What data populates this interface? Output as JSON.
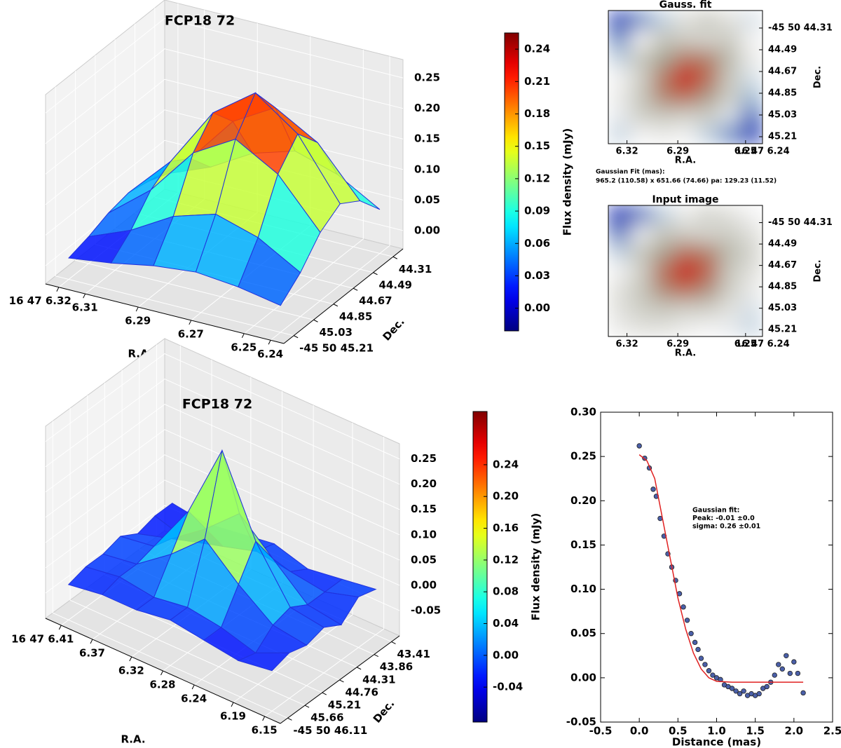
{
  "chart_data": [
    {
      "type": "surface3d",
      "title": "FCP18 72",
      "xlabel": "R.A.",
      "ylabel": "Dec.",
      "x": [
        6.32,
        6.304,
        6.288,
        6.272,
        6.256,
        6.24
      ],
      "y": [
        45.21,
        45.03,
        44.85,
        44.67,
        44.49,
        44.31
      ],
      "z": [
        [
          0.005,
          0.014,
          0.027,
          0.034,
          0.027,
          0.014
        ],
        [
          0.014,
          0.042,
          0.082,
          0.103,
          0.082,
          0.042
        ],
        [
          0.027,
          0.082,
          0.16,
          0.2,
          0.16,
          0.082
        ],
        [
          0.034,
          0.103,
          0.2,
          0.25,
          0.2,
          0.103
        ],
        [
          0.027,
          0.082,
          0.16,
          0.2,
          0.16,
          0.082
        ],
        [
          0.014,
          0.042,
          0.082,
          0.103,
          0.082,
          0.042
        ]
      ],
      "xlim": [
        6.325,
        6.235
      ],
      "xticks": [
        {
          "value": 6.32,
          "label": "16 47 6.32"
        },
        6.31,
        6.29,
        6.27,
        6.25,
        6.24
      ],
      "ylim": [
        45.3,
        44.22
      ],
      "yticks": [
        44.31,
        44.49,
        44.67,
        44.85,
        45.03,
        {
          "value": 45.21,
          "label": "-45 50 45.21"
        }
      ],
      "zlim": [
        -0.03,
        0.28
      ],
      "zticks": [
        0.25,
        {
          "value": 0.2,
          "label": "0.20"
        },
        0.15,
        {
          "value": 0.1,
          "label": "0.10"
        },
        0.05,
        {
          "value": 0,
          "label": "0.00"
        }
      ],
      "clim": [
        -0.021,
        0.255
      ],
      "colormap": "jet",
      "wire_color": "#2233dd"
    },
    {
      "type": "colorbar",
      "label": "Flux density (mJy)",
      "clim": [
        -0.021,
        0.255
      ],
      "colormap": "jet",
      "cticks": [
        0.24,
        0.21,
        0.18,
        0.15,
        0.12,
        0.09,
        0.06,
        0.03,
        {
          "value": 0,
          "label": "0.00"
        }
      ]
    },
    {
      "type": "heatmap",
      "title": "Gauss. fit",
      "xlabel": "R.A.",
      "ylabel": "Dec.",
      "values": [
        [
          0.05,
          0.15,
          0.3,
          0.45,
          0.5,
          0.45,
          0.35
        ],
        [
          0.15,
          0.4,
          0.52,
          0.5,
          0.48,
          0.5,
          0.4
        ],
        [
          0.3,
          0.52,
          0.6,
          0.75,
          0.72,
          0.55,
          0.42
        ],
        [
          0.4,
          0.5,
          0.75,
          1.0,
          0.8,
          0.52,
          0.35
        ],
        [
          0.42,
          0.52,
          0.72,
          0.8,
          0.65,
          0.5,
          0.25
        ],
        [
          0.38,
          0.5,
          0.52,
          0.5,
          0.5,
          0.35,
          0.12
        ],
        [
          0.32,
          0.4,
          0.42,
          0.4,
          0.3,
          0.15,
          0.05
        ]
      ],
      "clim": [
        0,
        1
      ],
      "colors": [
        "#1428b4",
        "#8fb0cc",
        "#f2f2f2",
        "#a8a898",
        "#b86a50",
        "#cc1010"
      ],
      "xlim": [
        6.331,
        6.24
      ],
      "xticks": [
        6.32,
        6.29,
        6.25,
        {
          "value": 6.24,
          "label": "16 47 6.24"
        }
      ],
      "ylim": [
        44.165,
        45.268
      ],
      "yticks": [
        {
          "value": 44.31,
          "label": "-45 50 44.31"
        },
        44.49,
        44.67,
        44.85,
        45.03,
        45.21
      ],
      "annotation": [
        "Gaussian Fit (mas):",
        "965.2 (110.58) x 651.66 (74.66) pa: 129.23 (11.52)"
      ]
    },
    {
      "type": "heatmap",
      "title": "Input image",
      "xlabel": "R.A.",
      "ylabel": "Dec.",
      "values": [
        [
          0.02,
          0.12,
          0.3,
          0.42,
          0.48,
          0.45,
          0.4
        ],
        [
          0.12,
          0.38,
          0.52,
          0.5,
          0.48,
          0.5,
          0.45
        ],
        [
          0.3,
          0.52,
          0.62,
          0.78,
          0.72,
          0.55,
          0.48
        ],
        [
          0.4,
          0.5,
          0.78,
          1.0,
          0.82,
          0.52,
          0.45
        ],
        [
          0.45,
          0.52,
          0.7,
          0.8,
          0.68,
          0.5,
          0.42
        ],
        [
          0.45,
          0.5,
          0.52,
          0.5,
          0.5,
          0.45,
          0.35
        ],
        [
          0.42,
          0.45,
          0.45,
          0.42,
          0.4,
          0.38,
          0.32
        ]
      ],
      "clim": [
        0,
        1
      ],
      "colors": [
        "#1428b4",
        "#8fb0cc",
        "#f2f2f2",
        "#a8a898",
        "#b86a50",
        "#cc1010"
      ],
      "xlim": [
        6.331,
        6.24
      ],
      "xticks": [
        6.32,
        6.29,
        6.25,
        {
          "value": 6.24,
          "label": "16 47 6.24"
        }
      ],
      "ylim": [
        44.165,
        45.268
      ],
      "yticks": [
        {
          "value": 44.31,
          "label": "-45 50 44.31"
        },
        44.49,
        44.67,
        44.85,
        45.03,
        45.21
      ]
    },
    {
      "type": "surface3d",
      "title": "FCP18 72",
      "xlabel": "R.A.",
      "ylabel": "Dec.",
      "x": [
        6.41,
        6.367,
        6.323,
        6.28,
        6.237,
        6.193,
        6.15
      ],
      "y": [
        46.11,
        45.66,
        45.21,
        44.76,
        44.31,
        43.86,
        43.41
      ],
      "z": [
        [
          -0.03,
          -0.02,
          -0.02,
          -0.01,
          -0.02,
          -0.03,
          -0.02
        ],
        [
          -0.02,
          -0.01,
          -0.02,
          -0.01,
          -0.02,
          -0.04,
          -0.01
        ],
        [
          -0.02,
          -0.01,
          0.04,
          0.1,
          0.04,
          -0.01,
          -0.02
        ],
        [
          -0.01,
          0.0,
          0.1,
          0.25,
          0.1,
          0.0,
          -0.01
        ],
        [
          -0.03,
          -0.01,
          0.04,
          0.1,
          0.04,
          -0.02,
          -0.03
        ],
        [
          -0.02,
          -0.04,
          -0.02,
          0.0,
          -0.01,
          -0.02,
          0.0
        ],
        [
          -0.02,
          -0.03,
          -0.02,
          -0.01,
          -0.03,
          -0.02,
          -0.01
        ]
      ],
      "xlim": [
        6.43,
        6.13
      ],
      "xticks": [
        {
          "value": 6.41,
          "label": "16 47 6.41"
        },
        6.37,
        6.32,
        6.28,
        6.24,
        6.19,
        6.15
      ],
      "ylim": [
        46.3,
        43.2
      ],
      "yticks": [
        43.41,
        43.86,
        44.31,
        44.76,
        45.21,
        45.66,
        {
          "value": 46.11,
          "label": "-45 50 46.11"
        }
      ],
      "zlim": [
        -0.1,
        0.28
      ],
      "zticks": [
        0.25,
        {
          "value": 0.2,
          "label": "0.20"
        },
        0.15,
        {
          "value": 0.1,
          "label": "0.10"
        },
        0.05,
        {
          "value": 0,
          "label": "0.00"
        },
        -0.05
      ],
      "clim": [
        -0.084,
        0.307
      ],
      "colormap": "jet",
      "wire_color": "#2233dd"
    },
    {
      "type": "colorbar",
      "label": "Flux density (mJy)",
      "clim": [
        -0.084,
        0.307
      ],
      "colormap": "jet",
      "cticks": [
        0.24,
        {
          "value": 0.2,
          "label": "0.20"
        },
        0.16,
        0.12,
        0.08,
        0.04,
        {
          "value": 0,
          "label": "0.00"
        },
        -0.04
      ]
    },
    {
      "type": "scatter",
      "xlabel": "Distance (mas)",
      "points": {
        "color": "#4a5fa8",
        "x": [
          0.0,
          0.07,
          0.13,
          0.18,
          0.22,
          0.27,
          0.32,
          0.37,
          0.42,
          0.47,
          0.52,
          0.57,
          0.62,
          0.67,
          0.72,
          0.76,
          0.8,
          0.85,
          0.9,
          0.95,
          1.0,
          1.05,
          1.1,
          1.15,
          1.2,
          1.25,
          1.3,
          1.35,
          1.4,
          1.45,
          1.5,
          1.55,
          1.6,
          1.65,
          1.7,
          1.75,
          1.8,
          1.85,
          1.9,
          1.95,
          2.0,
          2.05,
          2.12
        ],
        "y": [
          0.262,
          0.248,
          0.237,
          0.213,
          0.205,
          0.18,
          0.16,
          0.14,
          0.125,
          0.11,
          0.095,
          0.08,
          0.065,
          0.05,
          0.04,
          0.032,
          0.022,
          0.015,
          0.008,
          0.003,
          0.0,
          -0.002,
          -0.008,
          -0.01,
          -0.012,
          -0.015,
          -0.018,
          -0.015,
          -0.02,
          -0.018,
          -0.02,
          -0.018,
          -0.012,
          -0.01,
          -0.005,
          0.003,
          0.015,
          0.01,
          0.025,
          0.005,
          0.018,
          0.005,
          -0.017
        ]
      },
      "fit": {
        "color": "#e02020",
        "x": [
          0.0,
          0.1,
          0.2,
          0.3,
          0.4,
          0.5,
          0.6,
          0.7,
          0.8,
          0.9,
          1.0,
          1.2,
          2.12
        ],
        "y": [
          0.252,
          0.245,
          0.225,
          0.18,
          0.135,
          0.09,
          0.055,
          0.028,
          0.01,
          0.0,
          -0.004,
          -0.005,
          -0.005
        ]
      },
      "xlim": [
        -0.5,
        2.5
      ],
      "xticks": [
        -0.5,
        {
          "value": 0,
          "label": "0.0"
        },
        0.5,
        {
          "value": 1,
          "label": "1.0"
        },
        1.5,
        {
          "value": 2,
          "label": "2.0"
        },
        2.5
      ],
      "ylim": [
        -0.05,
        0.3
      ],
      "yticks": [
        -0.05,
        {
          "value": 0,
          "label": "0.00"
        },
        0.05,
        {
          "value": 0.1,
          "label": "0.10"
        },
        0.15,
        {
          "value": 0.2,
          "label": "0.20"
        },
        0.25,
        {
          "value": 0.3,
          "label": "0.30"
        }
      ],
      "annotation": [
        "Gaussian fit:",
        "Peak: -0.01 ±0.0",
        "sigma: 0.26 ±0.01"
      ]
    }
  ]
}
